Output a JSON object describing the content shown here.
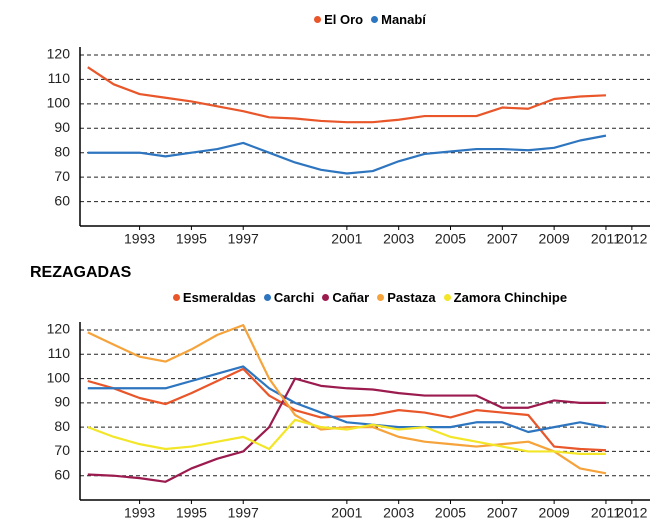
{
  "chart_data": [
    {
      "type": "line",
      "x": [
        1991,
        1992,
        1993,
        1994,
        1995,
        1996,
        1997,
        1998,
        1999,
        2000,
        2001,
        2002,
        2003,
        2004,
        2005,
        2006,
        2007,
        2008,
        2009,
        2010,
        2011
      ],
      "series": [
        {
          "name": "El Oro",
          "color": "#e8562a",
          "values": [
            115,
            108,
            104,
            102.5,
            101,
            99,
            97,
            94.5,
            94,
            93,
            92.5,
            92.5,
            93.5,
            95,
            95,
            95,
            98.5,
            98,
            102,
            103,
            103.5
          ]
        },
        {
          "name": "Manabí",
          "color": "#2e75c0",
          "values": [
            80,
            80,
            80,
            78.5,
            80,
            81.5,
            84,
            80,
            76,
            73,
            71.5,
            72.5,
            76.5,
            79.5,
            80.5,
            81.5,
            81.5,
            81,
            82,
            85,
            87
          ]
        }
      ],
      "xlim": [
        1990.7,
        2012.7
      ],
      "xticks": [
        1993,
        1995,
        1997,
        2001,
        2003,
        2005,
        2007,
        2009,
        2011,
        2012
      ],
      "ylim": [
        50,
        120
      ],
      "yticks": [
        60,
        70,
        80,
        90,
        100,
        110,
        120
      ],
      "grid": true,
      "legend": "top"
    },
    {
      "type": "line",
      "title": "REZAGADAS",
      "x": [
        1991,
        1992,
        1993,
        1994,
        1995,
        1996,
        1997,
        1998,
        1999,
        2000,
        2001,
        2002,
        2003,
        2004,
        2005,
        2006,
        2007,
        2008,
        2009,
        2010,
        2011
      ],
      "series": [
        {
          "name": "Esmeraldas",
          "color": "#e8562a",
          "values": [
            99,
            96,
            92,
            89.5,
            94,
            99,
            104,
            93,
            87,
            84,
            84.5,
            85,
            87,
            86,
            84,
            87,
            86,
            85,
            72,
            71,
            70.5
          ]
        },
        {
          "name": "Carchi",
          "color": "#2e75c0",
          "values": [
            96,
            96,
            96,
            96,
            99,
            102,
            105,
            96,
            90,
            86,
            82,
            81,
            80,
            80,
            80,
            82,
            82,
            78,
            80,
            82,
            80
          ]
        },
        {
          "name": "Cañar",
          "color": "#9b1b4f",
          "values": [
            60.5,
            60,
            59,
            57.5,
            63,
            67,
            70,
            80,
            100,
            97,
            96,
            95.5,
            94,
            93,
            93,
            93,
            88,
            88,
            91,
            90,
            90
          ]
        },
        {
          "name": "Pastaza",
          "color": "#f5a33a",
          "values": [
            119,
            114,
            109,
            107,
            112,
            118,
            122,
            100,
            85,
            79,
            80,
            80,
            76,
            74,
            73,
            72,
            73,
            74,
            70,
            63,
            61
          ]
        },
        {
          "name": "Zamora Chinchipe",
          "color": "#f3e628",
          "values": [
            80,
            76,
            73,
            71,
            72,
            74,
            76,
            71,
            83,
            80,
            79,
            81,
            79,
            80,
            76,
            74,
            72,
            70,
            70,
            69,
            69
          ]
        }
      ],
      "xlim": [
        1990.7,
        2012.7
      ],
      "xticks": [
        1993,
        1995,
        1997,
        2001,
        2003,
        2005,
        2007,
        2009,
        2011,
        2012
      ],
      "ylim": [
        50,
        120
      ],
      "yticks": [
        60,
        70,
        80,
        90,
        100,
        110,
        120
      ],
      "grid": true,
      "legend": "top"
    }
  ]
}
